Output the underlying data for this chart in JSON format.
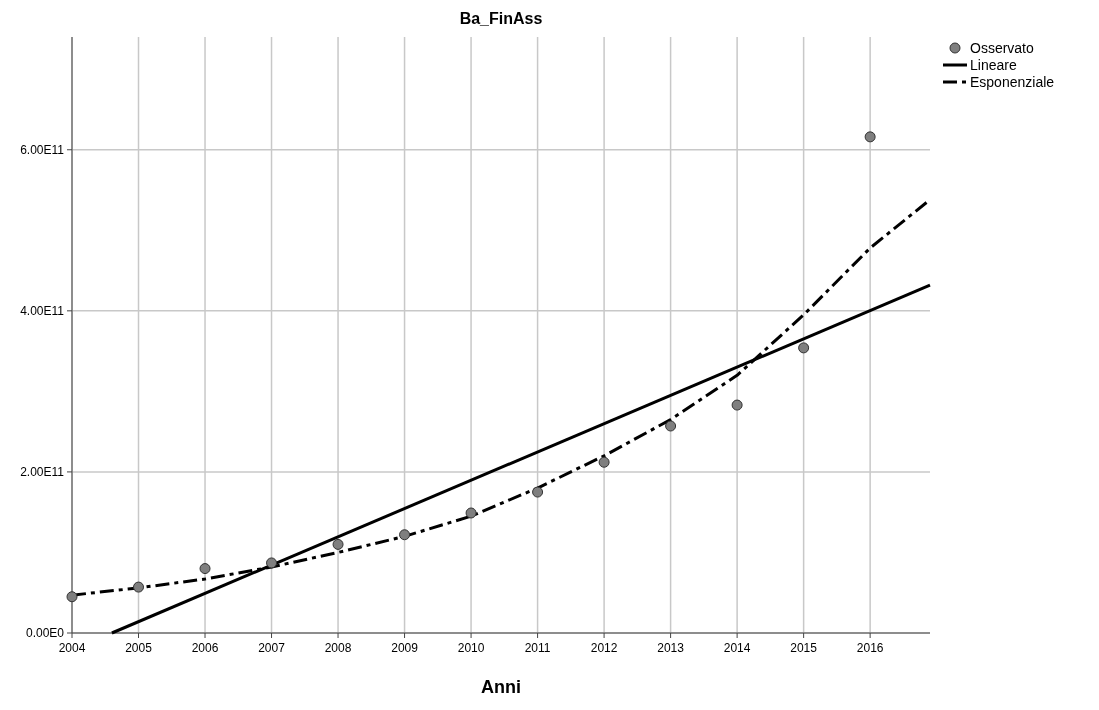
{
  "chart_data": {
    "type": "scatter",
    "title": "Ba_FinAss",
    "xlabel": "Anni",
    "xlim": [
      2004,
      2016.9
    ],
    "xticks": [
      2004,
      2005,
      2006,
      2007,
      2008,
      2009,
      2010,
      2011,
      2012,
      2013,
      2014,
      2015,
      2016
    ],
    "ylim": [
      0,
      740000000000.0
    ],
    "yticks": [
      {
        "value": 0,
        "label": "0.00E0"
      },
      {
        "value": 200000000000.0,
        "label": "2.00E11"
      },
      {
        "value": 400000000000.0,
        "label": "4.00E11"
      },
      {
        "value": 600000000000.0,
        "label": "6.00E11"
      }
    ],
    "grid": true,
    "legend": "top right",
    "series": [
      {
        "name": "Osservato",
        "color": "#7f7f7f",
        "marker": "circle",
        "x": [
          2004,
          2005,
          2006,
          2007,
          2008,
          2009,
          2010,
          2011,
          2012,
          2013,
          2014,
          2015,
          2016
        ],
        "values": [
          45000000000.0,
          57000000000.0,
          80000000000.0,
          87000000000.0,
          110000000000.0,
          122000000000.0,
          149000000000.0,
          175000000000.0,
          212000000000.0,
          257000000000.0,
          283000000000.0,
          354000000000.0,
          616000000000.0
        ]
      },
      {
        "name": "Lineare",
        "type": "line",
        "color": "#000000",
        "line_style": "solid",
        "x": [
          2004.6,
          2016.9
        ],
        "values": [
          0,
          432000000000.0
        ]
      },
      {
        "name": "Esponenziale",
        "type": "line",
        "color": "#000000",
        "line_style": "dashdot",
        "x": [
          2004,
          2005,
          2006,
          2007,
          2008,
          2009,
          2010,
          2011,
          2012,
          2013,
          2014,
          2015,
          2016,
          2016.9
        ],
        "values": [
          47000000000.0,
          56000000000.0,
          67000000000.0,
          82000000000.0,
          100000000000.0,
          120000000000.0,
          145000000000.0,
          180000000000.0,
          220000000000.0,
          265000000000.0,
          320000000000.0,
          395000000000.0,
          478000000000.0,
          538000000000.0
        ]
      }
    ]
  }
}
